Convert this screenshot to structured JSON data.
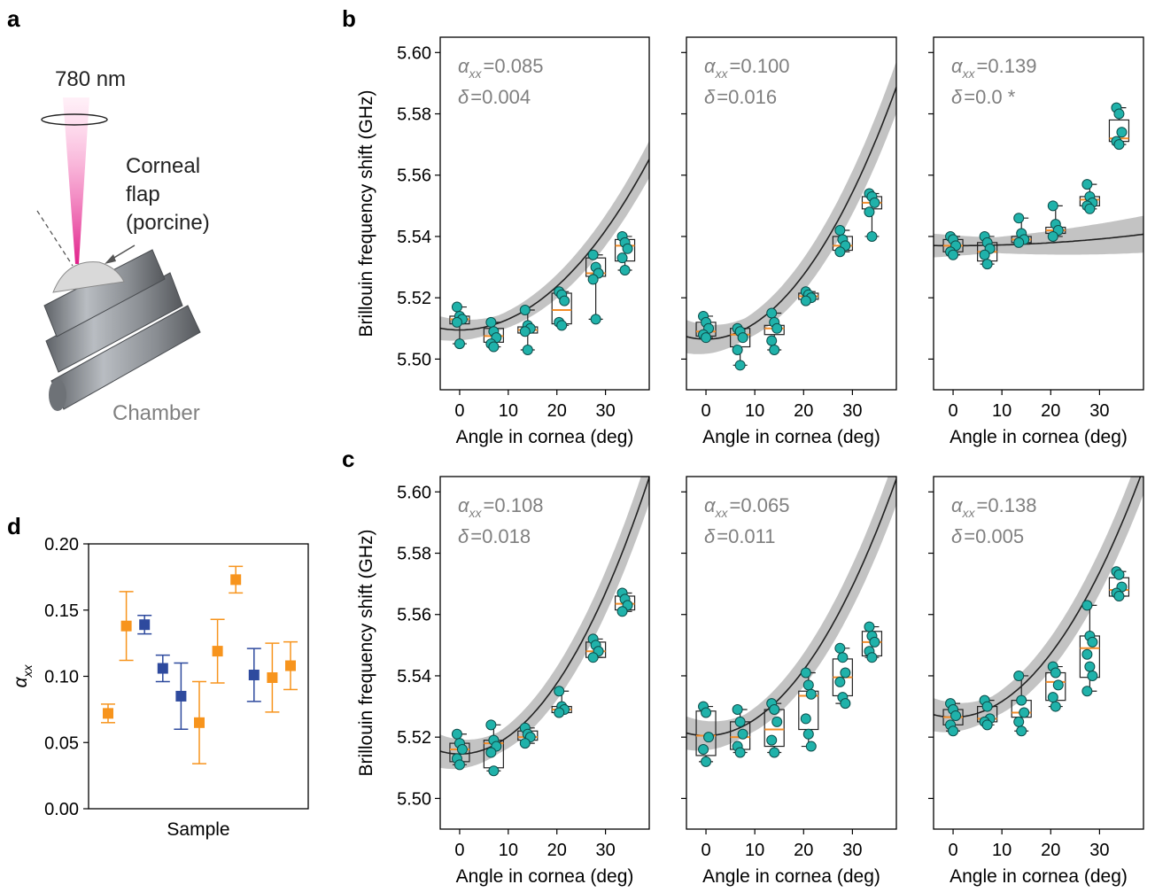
{
  "panel_labels": {
    "a": "a",
    "b": "b",
    "c": "c",
    "d": "d"
  },
  "illustration": {
    "wavelength": "780 nm",
    "sample_lines": [
      "Corneal",
      "flap",
      "(porcine)"
    ],
    "chamber": "Chamber"
  },
  "colors": {
    "marker": "#20b2aa",
    "median": "#f28c28",
    "fit": "#222222",
    "band": "#a9a9a9",
    "orange": "#f7941d",
    "blue": "#2e4a9e",
    "annot": "#808080"
  },
  "chart_data": [
    {
      "type": "scatter",
      "panel": "b",
      "index": 1,
      "xlabel": "Angle in cornea (deg)",
      "ylabel": "Brillouin frequency shift (GHz)",
      "xlim": [
        -4,
        39
      ],
      "ylim": [
        5.49,
        5.605
      ],
      "xticks": [
        "0",
        "10",
        "20",
        "30"
      ],
      "yticks": [
        "5.50",
        "5.52",
        "5.54",
        "5.56",
        "5.58",
        "5.60"
      ],
      "annotation": {
        "alpha_label": "α",
        "alpha_sub": "xx",
        "alpha_value": "=0.085",
        "delta_label": "δ",
        "delta_value": "=0.004"
      },
      "fit": {
        "y0": 5.5095,
        "k": 0.042,
        "band": 0.0025
      },
      "groups": [
        {
          "x": 0,
          "points": [
            5.517,
            5.514,
            5.513,
            5.512,
            5.505
          ],
          "q1": 5.5115,
          "median": 5.513,
          "q3": 5.514
        },
        {
          "x": 7,
          "points": [
            5.512,
            5.509,
            5.507,
            5.505,
            5.504
          ],
          "q1": 5.5055,
          "median": 5.5075,
          "q3": 5.51
        },
        {
          "x": 14,
          "points": [
            5.516,
            5.511,
            5.51,
            5.509,
            5.503
          ],
          "q1": 5.5085,
          "median": 5.5095,
          "q3": 5.5105
        },
        {
          "x": 21,
          "points": [
            5.522,
            5.521,
            5.519,
            5.512,
            5.511
          ],
          "q1": 5.5115,
          "median": 5.516,
          "q3": 5.5215
        },
        {
          "x": 28,
          "points": [
            5.534,
            5.53,
            5.528,
            5.526,
            5.513
          ],
          "q1": 5.527,
          "median": 5.528,
          "q3": 5.533
        },
        {
          "x": 34,
          "points": [
            5.54,
            5.538,
            5.536,
            5.533,
            5.529
          ],
          "q1": 5.532,
          "median": 5.537,
          "q3": 5.539
        }
      ]
    },
    {
      "type": "scatter",
      "panel": "b",
      "index": 2,
      "xlabel": "Angle in cornea (deg)",
      "ylabel": "",
      "xlim": [
        -4,
        39
      ],
      "ylim": [
        5.49,
        5.605
      ],
      "xticks": [
        "0",
        "10",
        "20",
        "30"
      ],
      "yticks": [
        "",
        "",
        "",
        "",
        "",
        ""
      ],
      "annotation": {
        "alpha_label": "α",
        "alpha_sub": "xx",
        "alpha_value": "=0.100",
        "delta_label": "δ",
        "delta_value": "=0.016"
      },
      "fit": {
        "y0": 5.5065,
        "k": 0.062,
        "band": 0.0035
      },
      "groups": [
        {
          "x": 0,
          "points": [
            5.514,
            5.512,
            5.51,
            5.508,
            5.507
          ],
          "q1": 5.5075,
          "median": 5.509,
          "q3": 5.512
        },
        {
          "x": 7,
          "points": [
            5.51,
            5.509,
            5.507,
            5.503,
            5.498
          ],
          "q1": 5.504,
          "median": 5.508,
          "q3": 5.51
        },
        {
          "x": 14,
          "points": [
            5.515,
            5.512,
            5.51,
            5.506,
            5.503
          ],
          "q1": 5.508,
          "median": 5.51,
          "q3": 5.511
        },
        {
          "x": 21,
          "points": [
            5.522,
            5.521,
            5.52,
            5.519
          ],
          "q1": 5.5195,
          "median": 5.5205,
          "q3": 5.5215
        },
        {
          "x": 28,
          "points": [
            5.542,
            5.539,
            5.537,
            5.535
          ],
          "q1": 5.5355,
          "median": 5.537,
          "q3": 5.54
        },
        {
          "x": 34,
          "points": [
            5.554,
            5.553,
            5.551,
            5.548,
            5.54
          ],
          "q1": 5.549,
          "median": 5.551,
          "q3": 5.553
        }
      ]
    },
    {
      "type": "scatter",
      "panel": "b",
      "index": 3,
      "xlabel": "Angle in cornea (deg)",
      "ylabel": "",
      "xlim": [
        -4,
        39
      ],
      "ylim": [
        5.49,
        5.605
      ],
      "xticks": [
        "0",
        "10",
        "20",
        "30"
      ],
      "yticks": [
        "",
        "",
        "",
        "",
        "",
        ""
      ],
      "annotation": {
        "alpha_label": "α",
        "alpha_sub": "xx",
        "alpha_value": "=0.139",
        "delta_label": "δ",
        "delta_value": "=0.0 *"
      },
      "fit": {
        "y0": 5.537,
        "k": 0.0028,
        "band": 0.0025
      },
      "groups": [
        {
          "x": 0,
          "points": [
            5.54,
            5.539,
            5.537,
            5.535,
            5.534
          ],
          "q1": 5.535,
          "median": 5.537,
          "q3": 5.539
        },
        {
          "x": 7,
          "points": [
            5.54,
            5.538,
            5.536,
            5.534,
            5.531
          ],
          "q1": 5.532,
          "median": 5.535,
          "q3": 5.538
        },
        {
          "x": 14,
          "points": [
            5.546,
            5.541,
            5.539,
            5.538
          ],
          "q1": 5.538,
          "median": 5.539,
          "q3": 5.54
        },
        {
          "x": 21,
          "points": [
            5.55,
            5.544,
            5.542,
            5.54
          ],
          "q1": 5.541,
          "median": 5.542,
          "q3": 5.543
        },
        {
          "x": 28,
          "points": [
            5.557,
            5.553,
            5.551,
            5.55,
            5.549
          ],
          "q1": 5.55,
          "median": 5.552,
          "q3": 5.553
        },
        {
          "x": 34,
          "points": [
            5.582,
            5.58,
            5.574,
            5.571,
            5.57
          ],
          "q1": 5.571,
          "median": 5.572,
          "q3": 5.578
        }
      ]
    },
    {
      "type": "scatter",
      "panel": "c",
      "index": 1,
      "xlabel": "Angle in cornea (deg)",
      "ylabel": "Brillouin frequency shift (GHz)",
      "xlim": [
        -4,
        39
      ],
      "ylim": [
        5.49,
        5.605
      ],
      "xticks": [
        "0",
        "10",
        "20",
        "30"
      ],
      "yticks": [
        "5.50",
        "5.52",
        "5.54",
        "5.56",
        "5.58",
        "5.60"
      ],
      "annotation": {
        "alpha_label": "α",
        "alpha_sub": "xx",
        "alpha_value": "=0.108",
        "delta_label": "δ",
        "delta_value": "=0.018"
      },
      "fit": {
        "y0": 5.5145,
        "k": 0.068,
        "band": 0.0035
      },
      "groups": [
        {
          "x": 0,
          "points": [
            5.521,
            5.518,
            5.516,
            5.513,
            5.511
          ],
          "q1": 5.512,
          "median": 5.516,
          "q3": 5.518
        },
        {
          "x": 7,
          "points": [
            5.524,
            5.519,
            5.517,
            5.515,
            5.509
          ],
          "q1": 5.51,
          "median": 5.518,
          "q3": 5.519
        },
        {
          "x": 14,
          "points": [
            5.523,
            5.521,
            5.52,
            5.518
          ],
          "q1": 5.519,
          "median": 5.52,
          "q3": 5.522
        },
        {
          "x": 21,
          "points": [
            5.535,
            5.53,
            5.529,
            5.528
          ],
          "q1": 5.528,
          "median": 5.529,
          "q3": 5.53
        },
        {
          "x": 28,
          "points": [
            5.552,
            5.55,
            5.548,
            5.546
          ],
          "q1": 5.546,
          "median": 5.548,
          "q3": 5.551
        },
        {
          "x": 34,
          "points": [
            5.567,
            5.565,
            5.563,
            5.561
          ],
          "q1": 5.5615,
          "median": 5.5635,
          "q3": 5.566
        }
      ]
    },
    {
      "type": "scatter",
      "panel": "c",
      "index": 2,
      "xlabel": "Angle in cornea (deg)",
      "ylabel": "",
      "xlim": [
        -4,
        39
      ],
      "ylim": [
        5.49,
        5.605
      ],
      "xticks": [
        "0",
        "10",
        "20",
        "30"
      ],
      "yticks": [
        "",
        "",
        "",
        "",
        "",
        ""
      ],
      "annotation": {
        "alpha_label": "α",
        "alpha_sub": "xx",
        "alpha_value": "=0.065",
        "delta_label": "δ",
        "delta_value": "=0.011"
      },
      "fit": {
        "y0": 5.5205,
        "k": 0.063,
        "band": 0.0035
      },
      "groups": [
        {
          "x": 0,
          "points": [
            5.53,
            5.528,
            5.52,
            5.516,
            5.512
          ],
          "q1": 5.514,
          "median": 5.5205,
          "q3": 5.5285
        },
        {
          "x": 7,
          "points": [
            5.529,
            5.525,
            5.521,
            5.517,
            5.515
          ],
          "q1": 5.516,
          "median": 5.52,
          "q3": 5.525
        },
        {
          "x": 14,
          "points": [
            5.531,
            5.529,
            5.525,
            5.519,
            5.515
          ],
          "q1": 5.517,
          "median": 5.5225,
          "q3": 5.529
        },
        {
          "x": 21,
          "points": [
            5.541,
            5.537,
            5.534,
            5.526,
            5.521,
            5.517
          ],
          "q1": 5.5225,
          "median": 5.5335,
          "q3": 5.535
        },
        {
          "x": 28,
          "points": [
            5.549,
            5.546,
            5.541,
            5.538,
            5.533,
            5.531
          ],
          "q1": 5.5335,
          "median": 5.5395,
          "q3": 5.5455
        },
        {
          "x": 34,
          "points": [
            5.556,
            5.553,
            5.551,
            5.548,
            5.546
          ],
          "q1": 5.5465,
          "median": 5.551,
          "q3": 5.5545
        }
      ]
    },
    {
      "type": "scatter",
      "panel": "c",
      "index": 3,
      "xlabel": "Angle in cornea (deg)",
      "ylabel": "",
      "xlim": [
        -4,
        39
      ],
      "ylim": [
        5.49,
        5.605
      ],
      "xticks": [
        "0",
        "10",
        "20",
        "30"
      ],
      "yticks": [
        "",
        "",
        "",
        "",
        "",
        ""
      ],
      "annotation": {
        "alpha_label": "α",
        "alpha_sub": "xx",
        "alpha_value": "=0.138",
        "delta_label": "δ",
        "delta_value": "=0.005"
      },
      "fit": {
        "y0": 5.5265,
        "k": 0.061,
        "band": 0.0035
      },
      "groups": [
        {
          "x": 0,
          "points": [
            5.531,
            5.529,
            5.527,
            5.524,
            5.522
          ],
          "q1": 5.524,
          "median": 5.5265,
          "q3": 5.529
        },
        {
          "x": 7,
          "points": [
            5.532,
            5.53,
            5.526,
            5.525,
            5.524
          ],
          "q1": 5.525,
          "median": 5.526,
          "q3": 5.53
        },
        {
          "x": 14,
          "points": [
            5.54,
            5.532,
            5.528,
            5.525,
            5.522
          ],
          "q1": 5.5265,
          "median": 5.528,
          "q3": 5.532
        },
        {
          "x": 21,
          "points": [
            5.543,
            5.541,
            5.537,
            5.533,
            5.53
          ],
          "q1": 5.532,
          "median": 5.538,
          "q3": 5.541
        },
        {
          "x": 28,
          "points": [
            5.563,
            5.553,
            5.551,
            5.547,
            5.543,
            5.54,
            5.535
          ],
          "q1": 5.5395,
          "median": 5.549,
          "q3": 5.553
        },
        {
          "x": 34,
          "points": [
            5.574,
            5.573,
            5.569,
            5.567,
            5.566
          ],
          "q1": 5.566,
          "median": 5.568,
          "q3": 5.572
        }
      ]
    },
    {
      "type": "scatter",
      "panel": "d",
      "xlabel": "Sample",
      "ylabel_symbol": "α",
      "ylabel_sub": "xx",
      "ylim": [
        0.0,
        0.2
      ],
      "yticks": [
        "0.00",
        "0.05",
        "0.10",
        "0.15",
        "0.20"
      ],
      "series": [
        {
          "name": "",
          "color": "orange",
          "points": [
            {
              "x": 1,
              "y": 0.072,
              "lo": 0.065,
              "hi": 0.079
            },
            {
              "x": 2,
              "y": 0.138,
              "lo": 0.112,
              "hi": 0.164
            },
            {
              "x": 6,
              "y": 0.065,
              "lo": 0.034,
              "hi": 0.096
            },
            {
              "x": 7,
              "y": 0.119,
              "lo": 0.095,
              "hi": 0.143
            },
            {
              "x": 8,
              "y": 0.173,
              "lo": 0.163,
              "hi": 0.183
            },
            {
              "x": 10,
              "y": 0.099,
              "lo": 0.073,
              "hi": 0.125
            },
            {
              "x": 11,
              "y": 0.108,
              "lo": 0.09,
              "hi": 0.126
            }
          ]
        },
        {
          "name": "",
          "color": "blue",
          "points": [
            {
              "x": 3,
              "y": 0.139,
              "lo": 0.132,
              "hi": 0.146
            },
            {
              "x": 4,
              "y": 0.106,
              "lo": 0.096,
              "hi": 0.116
            },
            {
              "x": 5,
              "y": 0.085,
              "lo": 0.06,
              "hi": 0.11
            },
            {
              "x": 9,
              "y": 0.101,
              "lo": 0.081,
              "hi": 0.121
            }
          ]
        }
      ]
    }
  ]
}
